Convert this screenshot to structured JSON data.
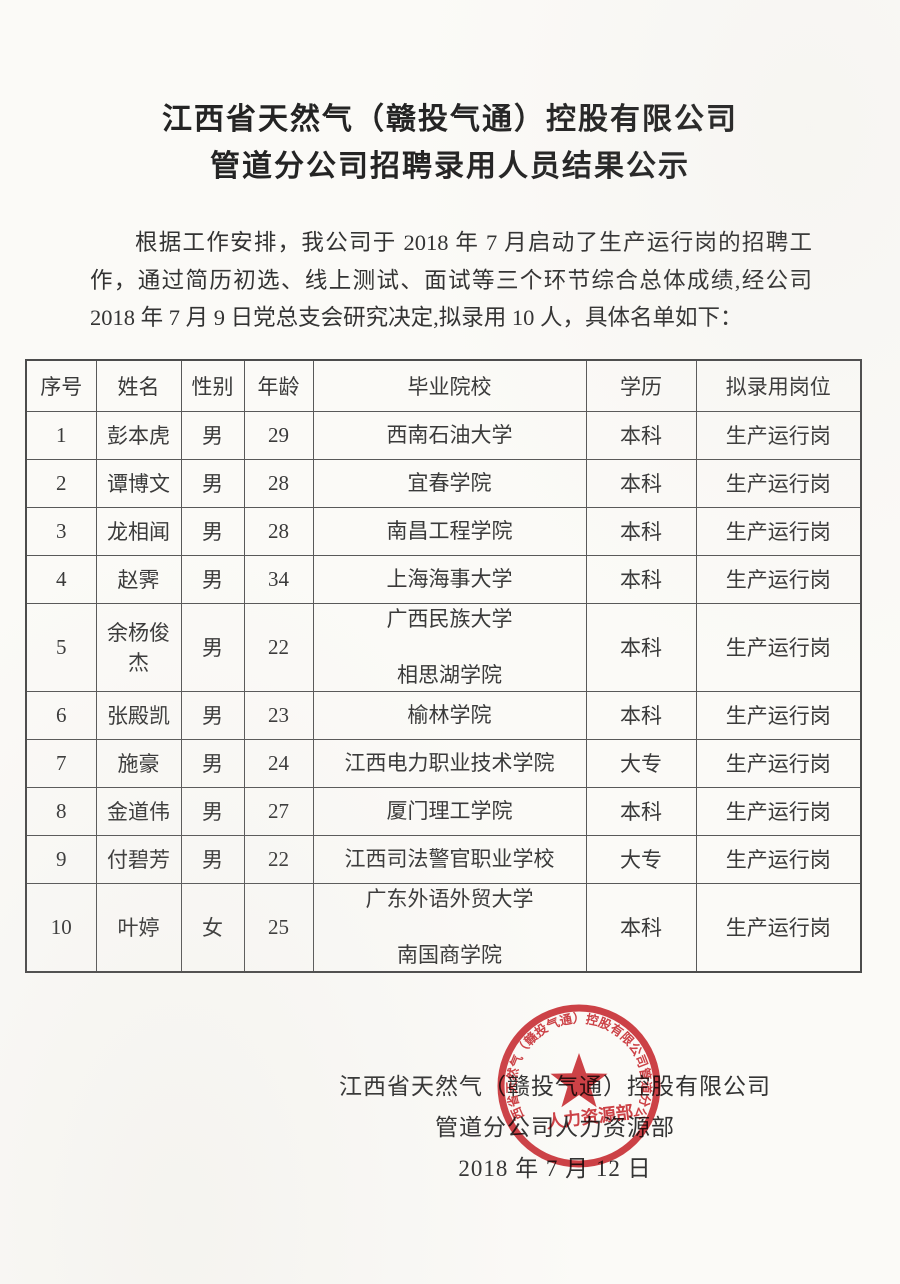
{
  "title": {
    "line1": "江西省天然气（赣投气通）控股有限公司",
    "line2": "管道分公司招聘录用人员结果公示"
  },
  "intro": {
    "text": "根据工作安排，我公司于 2018 年 7 月启动了生产运行岗的招聘工作，通过简历初选、线上测试、面试等三个环节综合总体成绩,经公司 2018 年 7 月 9 日党总支会研究决定,拟录用 10 人，具体名单如下："
  },
  "table": {
    "headers": [
      "序号",
      "姓名",
      "性别",
      "年龄",
      "毕业院校",
      "学历",
      "拟录用岗位"
    ],
    "rows": [
      {
        "no": "1",
        "name": "彭本虎",
        "gender": "男",
        "age": "29",
        "school": [
          "西南石油大学"
        ],
        "degree": "本科",
        "position": "生产运行岗"
      },
      {
        "no": "2",
        "name": "谭博文",
        "gender": "男",
        "age": "28",
        "school": [
          "宜春学院"
        ],
        "degree": "本科",
        "position": "生产运行岗"
      },
      {
        "no": "3",
        "name": "龙相闻",
        "gender": "男",
        "age": "28",
        "school": [
          "南昌工程学院"
        ],
        "degree": "本科",
        "position": "生产运行岗"
      },
      {
        "no": "4",
        "name": "赵霁",
        "gender": "男",
        "age": "34",
        "school": [
          "上海海事大学"
        ],
        "degree": "本科",
        "position": "生产运行岗"
      },
      {
        "no": "5",
        "name": "余杨俊杰",
        "gender": "男",
        "age": "22",
        "school": [
          "广西民族大学",
          "相思湖学院"
        ],
        "degree": "本科",
        "position": "生产运行岗"
      },
      {
        "no": "6",
        "name": "张殿凯",
        "gender": "男",
        "age": "23",
        "school": [
          "榆林学院"
        ],
        "degree": "本科",
        "position": "生产运行岗"
      },
      {
        "no": "7",
        "name": "施豪",
        "gender": "男",
        "age": "24",
        "school": [
          "江西电力职业技术学院"
        ],
        "degree": "大专",
        "position": "生产运行岗"
      },
      {
        "no": "8",
        "name": "金道伟",
        "gender": "男",
        "age": "27",
        "school": [
          "厦门理工学院"
        ],
        "degree": "本科",
        "position": "生产运行岗"
      },
      {
        "no": "9",
        "name": "付碧芳",
        "gender": "男",
        "age": "22",
        "school": [
          "江西司法警官职业学校"
        ],
        "degree": "大专",
        "position": "生产运行岗"
      },
      {
        "no": "10",
        "name": "叶婷",
        "gender": "女",
        "age": "25",
        "school": [
          "广东外语外贸大学",
          "南国商学院"
        ],
        "degree": "本科",
        "position": "生产运行岗"
      }
    ]
  },
  "signature": {
    "company": "江西省天然气（赣投气通）控股有限公司",
    "department": "管道分公司人力资源部",
    "date": "2018 年 7 月 12 日"
  },
  "seal": {
    "ring_text": "江西省天然气（赣投气通）控股有限公司管道分公司",
    "center_text": "人力资源部",
    "color": "#cc3238"
  }
}
